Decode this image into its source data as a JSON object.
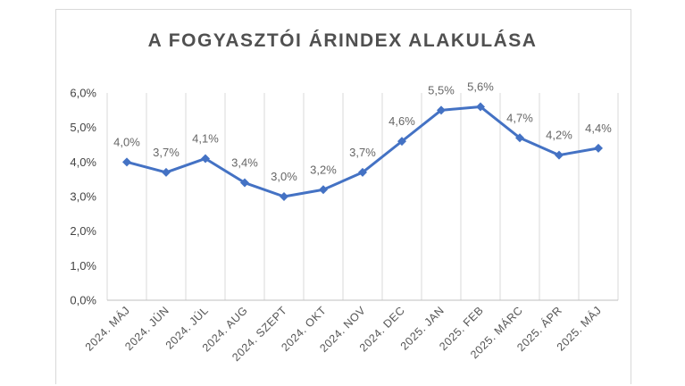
{
  "chart_data": {
    "type": "line",
    "title": "A FOGYASZTÓI ÁRINDEX ALAKULÁSA",
    "categories": [
      "2024. MÁJ",
      "2024. JÚN",
      "2024. JÚL",
      "2024. AUG",
      "2024. SZEPT",
      "2024. OKT",
      "2024. NOV",
      "2024. DEC",
      "2025. JAN",
      "2025. FEB",
      "2025. MÁRC",
      "2025. ÁPR",
      "2025. MÁJ"
    ],
    "values": [
      4.0,
      3.7,
      4.1,
      3.4,
      3.0,
      3.2,
      3.7,
      4.6,
      5.5,
      5.6,
      4.7,
      4.2,
      4.4
    ],
    "data_labels": [
      "4,0%",
      "3,7%",
      "4,1%",
      "3,4%",
      "3,0%",
      "3,2%",
      "3,7%",
      "4,6%",
      "5,5%",
      "5,6%",
      "4,7%",
      "4,2%",
      "4,4%"
    ],
    "yticks": [
      "0,0%",
      "1,0%",
      "2,0%",
      "3,0%",
      "4,0%",
      "5,0%",
      "6,0%"
    ],
    "ylim": [
      0,
      6
    ],
    "grid": "vertical",
    "legend": "none",
    "line_color": "#4472c4",
    "marker": "diamond"
  }
}
